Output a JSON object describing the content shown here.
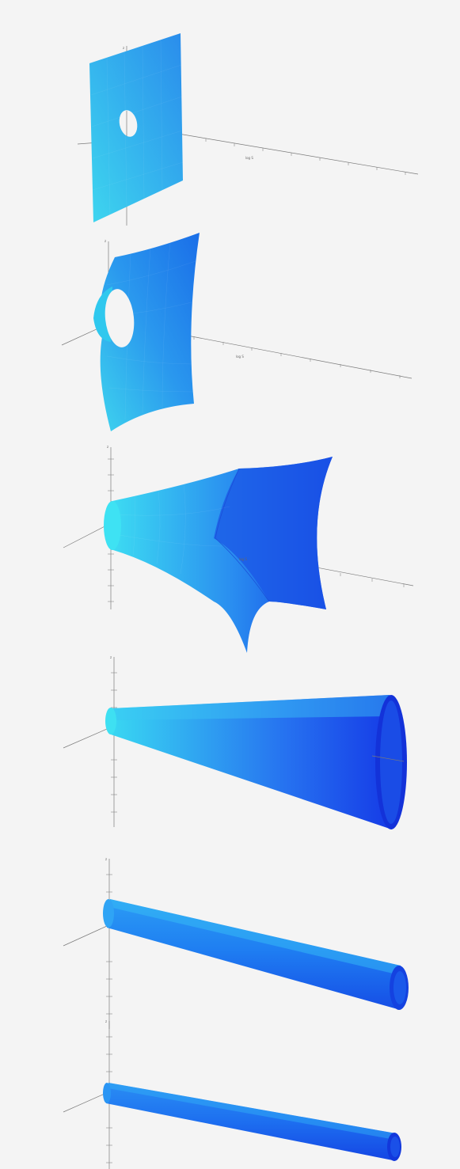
{
  "figure": {
    "panel_count": 6,
    "axis_label": "log S",
    "axis_letter": "z",
    "colors": {
      "background": "#f4f4f4",
      "surface_light": "#2fd8f2",
      "surface_mid": "#23a3f2",
      "surface_dark": "#1436e8",
      "axis": "#7a7a7a"
    },
    "panels": [
      {
        "id": 1,
        "shape": "flat-sheet-with-hole"
      },
      {
        "id": 2,
        "shape": "curved-sheet-with-hole"
      },
      {
        "id": 3,
        "shape": "flared-funnel"
      },
      {
        "id": 4,
        "shape": "cone"
      },
      {
        "id": 5,
        "shape": "tube"
      },
      {
        "id": 6,
        "shape": "thin-tube"
      }
    ]
  }
}
